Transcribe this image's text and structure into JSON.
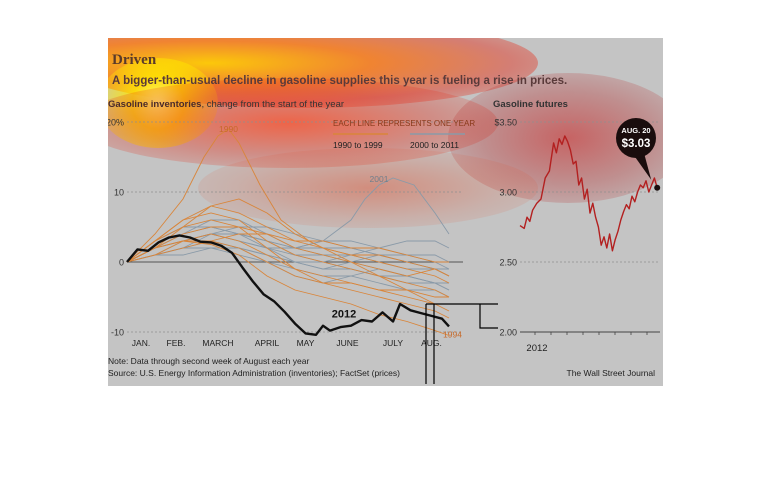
{
  "header": {
    "title": "Driven",
    "subtitle": "A bigger-than-usual decline in gasoline supplies this year is fueling a rise in prices.",
    "left_heading_bold": "Gasoline inventories",
    "left_heading_rest": ", change from the start of the year",
    "right_heading": "Gasoline futures"
  },
  "footer": {
    "note": "Note: Data through second week of August each year",
    "source": "Source: U.S. Energy Information Administration (inventories); FactSet (prices)",
    "credit": "The Wall Street Journal"
  },
  "colors": {
    "panel": "#c4c4c4",
    "line_1990s": "#d9853a",
    "line_2000s": "#8a9aa8",
    "line_2012": "#111111",
    "futures": "#b32020",
    "callout": "#1a0d0d"
  },
  "chart_data": [
    {
      "type": "line",
      "ylim": [
        -10,
        20
      ],
      "yticks": [
        {
          "value": 20,
          "label": "20%"
        },
        {
          "value": 10,
          "label": "10"
        },
        {
          "value": 0,
          "label": "0"
        },
        {
          "value": -10,
          "label": "-10"
        }
      ],
      "xlim": [
        0,
        48
      ],
      "months": [
        {
          "label": "JAN.",
          "x": 2
        },
        {
          "label": "FEB.",
          "x": 7
        },
        {
          "label": "MARCH",
          "x": 13
        },
        {
          "label": "APRIL",
          "x": 20
        },
        {
          "label": "MAY",
          "x": 25.5
        },
        {
          "label": "JUNE",
          "x": 31.5
        },
        {
          "label": "JULY",
          "x": 38
        },
        {
          "label": "AUG.",
          "x": 43.5
        }
      ],
      "legend": {
        "title": "EACH LINE REPRESENTS ONE YEAR",
        "entries": [
          {
            "label": "1990 to 1999",
            "color": "#d9853a"
          },
          {
            "label": "2000 to 2011",
            "color": "#8a9aa8"
          }
        ]
      },
      "annotations": [
        {
          "text": "1990",
          "x": 14.5,
          "y": 18.6
        },
        {
          "text": "2001",
          "x": 36,
          "y": 11.4
        },
        {
          "text": "2012",
          "x": 31,
          "y": -7.9
        },
        {
          "text": "1994",
          "x": 46.5,
          "y": -10.8
        }
      ],
      "series_2012": {
        "name": "2012",
        "x": [
          0,
          1.5,
          3,
          4.5,
          6,
          7.5,
          9,
          10.5,
          12,
          13.5,
          15,
          16.5,
          18,
          19.5,
          21,
          22.5,
          24,
          25.5,
          27,
          28,
          29,
          30.5,
          32,
          33.5,
          35,
          36.5,
          38,
          39,
          40.5,
          42,
          43.5,
          45,
          46
        ],
        "y": [
          0,
          1.8,
          1.6,
          2.8,
          3.5,
          3.8,
          3.5,
          2.9,
          2.8,
          2.3,
          1.3,
          -0.8,
          -2.8,
          -4.6,
          -5.6,
          -7.1,
          -8.8,
          -10.2,
          -10.4,
          -9.1,
          -9.8,
          -9.3,
          -9.1,
          -8.3,
          -8.5,
          -7.2,
          -8.5,
          -6.0,
          -6.9,
          -7.3,
          -7.7,
          -8.1,
          -9.2
        ]
      },
      "series_1990s": [
        {
          "name": "1990",
          "x": [
            0,
            4,
            8,
            11,
            13,
            14.5,
            16,
            19,
            22,
            26,
            30,
            34,
            38,
            42,
            46
          ],
          "y": [
            0,
            4,
            9,
            15,
            18,
            19,
            17,
            11,
            6,
            3,
            1,
            -1,
            -3,
            -5,
            -7
          ]
        },
        {
          "name": "1994",
          "x": [
            0,
            4,
            8,
            12,
            16,
            20,
            24,
            28,
            32,
            36,
            40,
            44,
            46
          ],
          "y": [
            0,
            2,
            3,
            2.5,
            1,
            -2,
            -4,
            -5,
            -6,
            -7.5,
            -8.5,
            -9.8,
            -10.5
          ]
        },
        {
          "x": [
            0,
            4,
            8,
            12,
            16,
            20,
            24,
            28,
            32,
            36,
            40,
            44,
            46
          ],
          "y": [
            0,
            3,
            6,
            7,
            6,
            3,
            1,
            0,
            -1,
            -2,
            -3,
            -4,
            -5
          ]
        },
        {
          "x": [
            0,
            4,
            8,
            12,
            16,
            20,
            24,
            28,
            32,
            36,
            40,
            44,
            46
          ],
          "y": [
            0,
            2,
            5,
            8,
            9,
            7,
            4,
            2,
            1,
            0,
            -1,
            -2,
            -3
          ]
        },
        {
          "x": [
            0,
            4,
            8,
            12,
            16,
            20,
            24,
            28,
            32,
            36,
            40,
            44,
            46
          ],
          "y": [
            0,
            1,
            3,
            4,
            3,
            1,
            -1,
            -2,
            -3,
            -4,
            -5,
            -6,
            -6
          ]
        },
        {
          "x": [
            0,
            4,
            8,
            12,
            16,
            20,
            24,
            28,
            32,
            36,
            40,
            44,
            46
          ],
          "y": [
            0,
            2,
            4,
            5,
            5,
            4,
            2,
            1,
            0,
            -1,
            -2,
            -1,
            -2
          ]
        },
        {
          "x": [
            0,
            4,
            8,
            12,
            16,
            20,
            24,
            28,
            32,
            36,
            40,
            44,
            46
          ],
          "y": [
            0,
            3,
            5,
            6,
            5,
            2,
            -1,
            -3,
            -4,
            -5,
            -6,
            -7,
            -8
          ]
        },
        {
          "x": [
            0,
            4,
            8,
            12,
            16,
            20,
            24,
            28,
            32,
            36,
            40,
            44,
            46
          ],
          "y": [
            0,
            1,
            2,
            3,
            4,
            4,
            3,
            3,
            2,
            2,
            1,
            0,
            0
          ]
        },
        {
          "x": [
            0,
            4,
            8,
            12,
            16,
            20,
            24,
            28,
            32,
            36,
            40,
            44,
            46
          ],
          "y": [
            0,
            2,
            3,
            3,
            2,
            0,
            -2,
            -3,
            -3,
            -4,
            -4,
            -5,
            -5
          ]
        },
        {
          "x": [
            0,
            4,
            8,
            12,
            16,
            20,
            24,
            28,
            32,
            36,
            40,
            44,
            46
          ],
          "y": [
            0,
            3,
            6,
            8,
            7,
            5,
            3,
            2,
            1,
            1,
            0,
            -1,
            -2
          ]
        }
      ],
      "series_2000s": [
        {
          "name": "2001",
          "x": [
            0,
            4,
            8,
            12,
            16,
            20,
            24,
            28,
            32,
            34,
            36,
            38,
            41,
            44,
            46
          ],
          "y": [
            0,
            2,
            3,
            4,
            4,
            3,
            2,
            3,
            6,
            9,
            11,
            12,
            11,
            7,
            4
          ]
        },
        {
          "x": [
            0,
            4,
            8,
            12,
            16,
            20,
            24,
            28,
            32,
            36,
            40,
            44,
            46
          ],
          "y": [
            0,
            2,
            4,
            5,
            4,
            2,
            0,
            -1,
            -1,
            -2,
            -2,
            -3,
            -3
          ]
        },
        {
          "x": [
            0,
            4,
            8,
            12,
            16,
            20,
            24,
            28,
            32,
            36,
            40,
            44,
            46
          ],
          "y": [
            0,
            1,
            2,
            2,
            1,
            0,
            -1,
            -2,
            -2,
            -3,
            -4,
            -4,
            -5
          ]
        },
        {
          "x": [
            0,
            4,
            8,
            12,
            16,
            20,
            24,
            28,
            32,
            36,
            40,
            44,
            46
          ],
          "y": [
            0,
            2,
            3,
            4,
            3,
            2,
            2,
            3,
            3,
            2,
            1,
            0,
            -1
          ]
        },
        {
          "x": [
            0,
            4,
            8,
            12,
            16,
            20,
            24,
            28,
            32,
            36,
            40,
            44,
            46
          ],
          "y": [
            0,
            1,
            3,
            4,
            4,
            3,
            1,
            0,
            1,
            2,
            3,
            3,
            2
          ]
        },
        {
          "x": [
            0,
            4,
            8,
            12,
            16,
            20,
            24,
            28,
            32,
            36,
            40,
            44,
            46
          ],
          "y": [
            0,
            2,
            4,
            6,
            6,
            4,
            2,
            1,
            0,
            -1,
            -2,
            -3,
            -4
          ]
        },
        {
          "x": [
            0,
            4,
            8,
            12,
            16,
            20,
            24,
            28,
            32,
            36,
            40,
            44,
            46
          ],
          "y": [
            0,
            1,
            2,
            3,
            2,
            1,
            0,
            -1,
            0,
            1,
            0,
            -1,
            -2
          ]
        },
        {
          "x": [
            0,
            4,
            8,
            12,
            16,
            20,
            24,
            28,
            32,
            36,
            40,
            44,
            46
          ],
          "y": [
            0,
            3,
            5,
            5,
            4,
            3,
            2,
            2,
            2,
            1,
            0,
            -1,
            -1
          ]
        },
        {
          "x": [
            0,
            4,
            8,
            12,
            16,
            20,
            24,
            28,
            32,
            36,
            40,
            44,
            46
          ],
          "y": [
            0,
            2,
            3,
            3,
            2,
            0,
            -2,
            -3,
            -2,
            -1,
            -2,
            -3,
            -4
          ]
        },
        {
          "x": [
            0,
            4,
            8,
            12,
            16,
            20,
            24,
            28,
            32,
            36,
            40,
            44,
            46
          ],
          "y": [
            0,
            1,
            2,
            4,
            5,
            5,
            4,
            3,
            2,
            1,
            1,
            1,
            0
          ]
        },
        {
          "x": [
            0,
            4,
            8,
            12,
            16,
            20,
            24,
            28,
            32,
            36,
            40,
            44,
            46
          ],
          "y": [
            0,
            2,
            3,
            4,
            3,
            2,
            1,
            1,
            1,
            0,
            -1,
            -1,
            -2
          ]
        },
        {
          "x": [
            0,
            4,
            8,
            12,
            16,
            20,
            24,
            28,
            32,
            36,
            40,
            44,
            46
          ],
          "y": [
            0,
            1,
            1,
            2,
            2,
            1,
            0,
            0,
            -1,
            -2,
            -3,
            -3,
            -3
          ]
        }
      ]
    },
    {
      "type": "line",
      "title": "Gasoline futures",
      "ylim": [
        2.0,
        3.5
      ],
      "yticks": [
        {
          "value": 3.5,
          "label": "$3.50"
        },
        {
          "value": 3.0,
          "label": "3.00"
        },
        {
          "value": 2.5,
          "label": "2.50"
        },
        {
          "value": 2.0,
          "label": "2.00"
        }
      ],
      "xlabel": "2012",
      "xlim": [
        0,
        100
      ],
      "callout": {
        "date": "AUG. 20",
        "value": "$3.03",
        "x": 98,
        "y": 3.03
      },
      "series": {
        "x": [
          0,
          3,
          5,
          7,
          9,
          12,
          15,
          18,
          21,
          24,
          26,
          28,
          30,
          32,
          34,
          36,
          38,
          40,
          42,
          44,
          46,
          48,
          50,
          52,
          54,
          56,
          58,
          60,
          62,
          64,
          66,
          68,
          70,
          72,
          74,
          76,
          78,
          80,
          82,
          84,
          86,
          88,
          90,
          92,
          94,
          96,
          98
        ],
        "y": [
          2.76,
          2.74,
          2.82,
          2.79,
          2.87,
          2.92,
          2.95,
          3.1,
          3.15,
          3.35,
          3.28,
          3.38,
          3.34,
          3.4,
          3.36,
          3.3,
          3.2,
          3.22,
          3.05,
          3.1,
          2.95,
          3.02,
          2.85,
          2.92,
          2.82,
          2.75,
          2.62,
          2.68,
          2.6,
          2.7,
          2.58,
          2.66,
          2.72,
          2.8,
          2.86,
          2.91,
          2.88,
          2.97,
          2.93,
          3.0,
          3.05,
          3.03,
          3.08,
          3.0,
          3.05,
          3.1,
          3.03
        ]
      }
    }
  ]
}
